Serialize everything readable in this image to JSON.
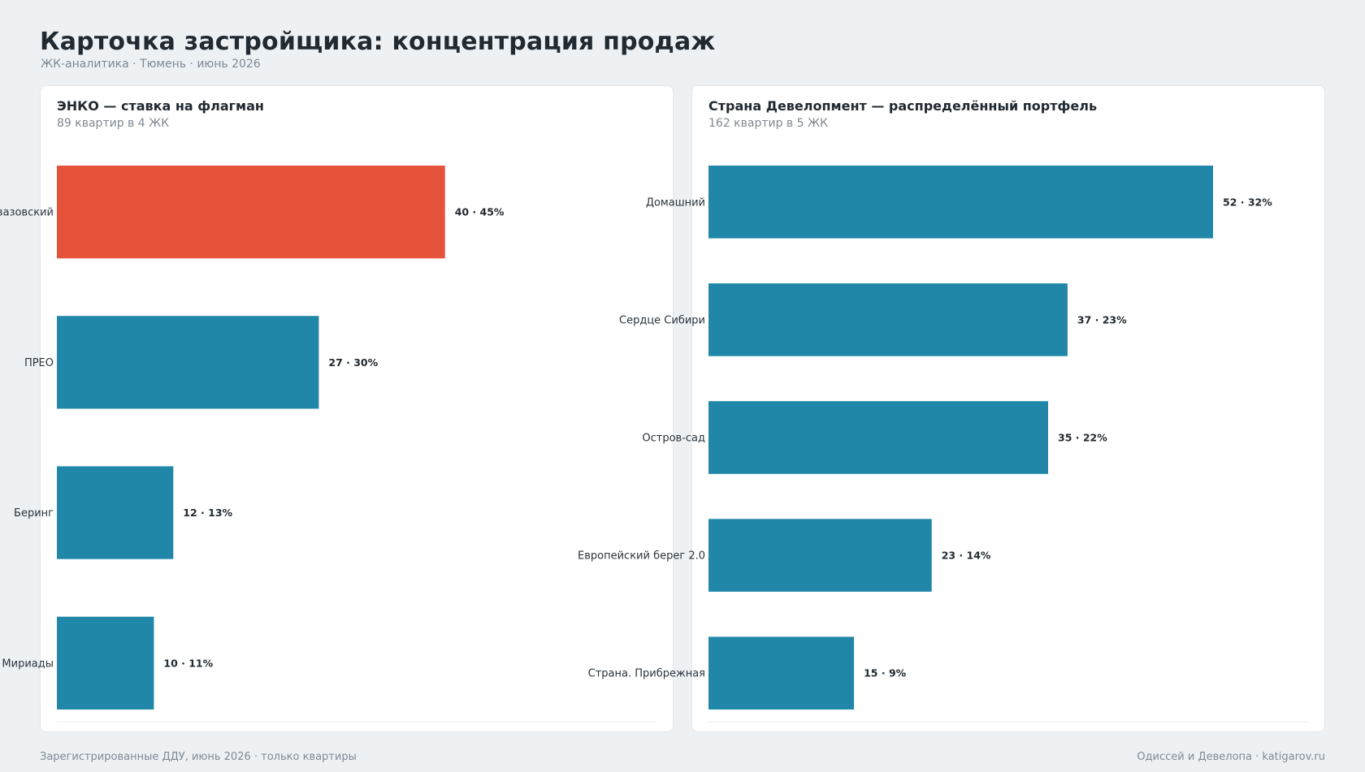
{
  "header": {
    "title": "Карточка застройщика: концентрация продаж",
    "subtitle": "ЖК-аналитика · Тюмень · июнь 2026"
  },
  "colors": {
    "highlight": "#e4533a",
    "default": "#2187a8"
  },
  "panels": [
    {
      "title": "ЭНКО — ставка на флагман",
      "subtitle": "89 квартир в 4 ЖК"
    },
    {
      "title": "Страна Девелопмент — распределённый портфель",
      "subtitle": "162 квартир в 5 ЖК"
    }
  ],
  "chart_data": [
    {
      "type": "bar",
      "orientation": "horizontal",
      "title": "ЭНКО — ставка на флагман",
      "subtitle": "89 квартир в 4 ЖК",
      "categories": [
        "Айвазовский",
        "ПРЕО",
        "Беринг",
        "Мириады"
      ],
      "values": [
        40,
        27,
        12,
        10
      ],
      "shares": [
        45,
        30,
        13,
        11
      ],
      "labels": [
        "40  ·  45%",
        "27  ·  30%",
        "12  ·  13%",
        "10  ·  11%"
      ],
      "highlight": [
        true,
        false,
        false,
        false
      ],
      "xlim": [
        0,
        52
      ]
    },
    {
      "type": "bar",
      "orientation": "horizontal",
      "title": "Страна Девелопмент — распределённый портфель",
      "subtitle": "162 квартир в 5 ЖК",
      "categories": [
        "Домашний",
        "Сердце Сибири",
        "Остров-сад",
        "Европейский берег 2.0",
        "Страна. Прибрежная"
      ],
      "values": [
        52,
        37,
        35,
        23,
        15
      ],
      "shares": [
        32,
        23,
        22,
        14,
        9
      ],
      "labels": [
        "52  ·  32%",
        "37  ·  23%",
        "35  ·  22%",
        "23  ·  14%",
        "15  ·  9%"
      ],
      "highlight": [
        false,
        false,
        false,
        false,
        false
      ],
      "xlim": [
        0,
        52
      ]
    }
  ],
  "footer": {
    "left": "Зарегистрированные ДДУ, июнь 2026 · только квартиры",
    "right": "Одиссей и Девелопа · katigarov.ru"
  }
}
